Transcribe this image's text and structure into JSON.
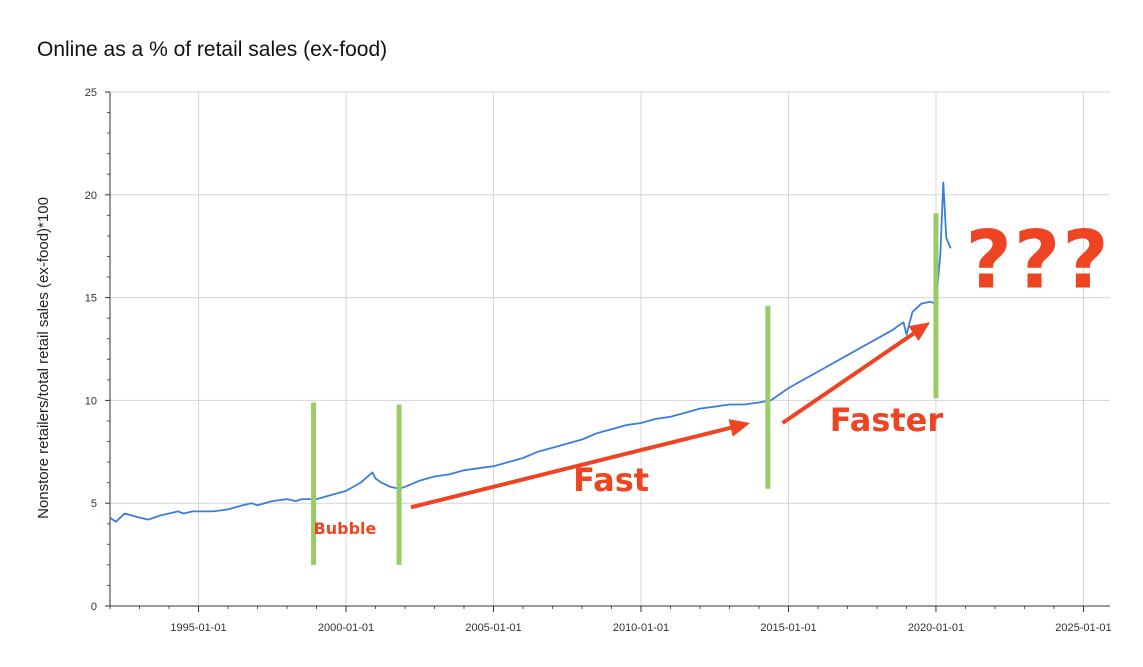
{
  "chart_data": {
    "type": "line",
    "title": "Online as a % of retail sales (ex-food)",
    "xlabel": "",
    "ylabel": "Nonstore retailers/total retail sales (ex-food)*100",
    "x_tick_labels": [
      "1995-01-01",
      "2000-01-01",
      "2005-01-01",
      "2010-01-01",
      "2015-01-01",
      "2020-01-01",
      "2025-01-01"
    ],
    "y_tick_labels": [
      "0",
      "5",
      "10",
      "15",
      "20",
      "25"
    ],
    "xlim": [
      1992.0,
      2025.9
    ],
    "ylim": [
      0,
      25
    ],
    "grid": true,
    "series_color": "#3b7ddd",
    "marker_color": "#99cc66",
    "annotation_color": "#ee4422",
    "series": [
      {
        "x": [
          1992.0,
          1992.2,
          1992.5,
          1993.0,
          1993.3,
          1993.7,
          1994.0,
          1994.3,
          1994.5,
          1994.8,
          1995.0,
          1995.5,
          1996.0,
          1996.5,
          1996.8,
          1997.0,
          1997.5,
          1998.0,
          1998.3,
          1998.5,
          1999.0,
          1999.5,
          2000.0,
          2000.5,
          2000.9,
          2001.0,
          2001.2,
          2001.5,
          2001.8,
          2002.0,
          2002.5,
          2003.0,
          2003.5,
          2004.0,
          2004.5,
          2005.0,
          2005.5,
          2006.0,
          2006.5,
          2007.0,
          2007.5,
          2008.0,
          2008.5,
          2009.0,
          2009.5,
          2010.0,
          2010.5,
          2011.0,
          2011.5,
          2012.0,
          2012.5,
          2013.0,
          2013.5,
          2014.0,
          2014.4,
          2015.0,
          2015.5,
          2016.0,
          2016.5,
          2017.0,
          2017.5,
          2018.0,
          2018.5,
          2018.9,
          2019.0,
          2019.2,
          2019.5,
          2019.8,
          2020.0,
          2020.15,
          2020.25,
          2020.35,
          2020.5
        ],
        "y": [
          4.3,
          4.1,
          4.5,
          4.3,
          4.2,
          4.4,
          4.5,
          4.6,
          4.5,
          4.6,
          4.6,
          4.6,
          4.7,
          4.9,
          5.0,
          4.9,
          5.1,
          5.2,
          5.1,
          5.2,
          5.2,
          5.4,
          5.6,
          6.0,
          6.5,
          6.2,
          6.0,
          5.8,
          5.7,
          5.8,
          6.1,
          6.3,
          6.4,
          6.6,
          6.7,
          6.8,
          7.0,
          7.2,
          7.5,
          7.7,
          7.9,
          8.1,
          8.4,
          8.6,
          8.8,
          8.9,
          9.1,
          9.2,
          9.4,
          9.6,
          9.7,
          9.8,
          9.8,
          9.9,
          10.0,
          10.6,
          11.0,
          11.4,
          11.8,
          12.2,
          12.6,
          13.0,
          13.4,
          13.8,
          13.2,
          14.3,
          14.7,
          14.8,
          14.7,
          17.2,
          20.6,
          17.9,
          17.4
        ]
      }
    ],
    "vertical_markers": [
      {
        "x": 1998.9,
        "y_range": [
          2.0,
          9.9
        ]
      },
      {
        "x": 2001.8,
        "y_range": [
          2.0,
          9.8
        ]
      },
      {
        "x": 2014.3,
        "y_range": [
          5.7,
          14.6
        ]
      },
      {
        "x": 2020.0,
        "y_range": [
          10.1,
          19.1
        ]
      }
    ],
    "arrows": [
      {
        "from": [
          2002.2,
          4.8
        ],
        "to": [
          2013.7,
          8.9
        ]
      },
      {
        "from": [
          2014.8,
          8.9
        ],
        "to": [
          2019.8,
          13.8
        ]
      }
    ],
    "annotations": [
      {
        "text": "Bubble",
        "x": 1998.9,
        "y": 3.5
      },
      {
        "text": "Fast",
        "x": 2007.7,
        "y": 5.6
      },
      {
        "text": "Faster",
        "x": 2016.4,
        "y": 8.5
      },
      {
        "text": "???",
        "x": 2021.0,
        "y": 15.5
      }
    ]
  }
}
